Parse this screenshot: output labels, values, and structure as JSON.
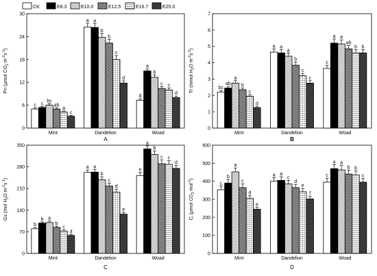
{
  "legend": [
    "CK",
    "E8.3",
    "E10.0",
    "E12.5",
    "E16.7",
    "E25.0"
  ],
  "series_styles": [
    {
      "name": "CK",
      "fill": "#ffffff",
      "pattern": "none"
    },
    {
      "name": "E8.3",
      "fill": "#000000",
      "pattern": "none"
    },
    {
      "name": "E10.0",
      "fill": "#c8c8c8",
      "pattern": "diag-light"
    },
    {
      "name": "E12.5",
      "fill": "#7a7a7a",
      "pattern": "diag-dark"
    },
    {
      "name": "E16.7",
      "fill": "#ffffff",
      "pattern": "grid"
    },
    {
      "name": "E25.0",
      "fill": "#3c3c3c",
      "pattern": "diag-black"
    }
  ],
  "chart_data": [
    {
      "type": "bar",
      "panel": "A",
      "ylabel_parts": [
        "Pn (",
        "μ",
        "mol CO",
        "2",
        " m",
        "-2",
        "s",
        "-1",
        ")"
      ],
      "ylim": [
        0,
        30
      ],
      "yticks": [
        0,
        6,
        12,
        18,
        24,
        30
      ],
      "categories": [
        "Mint",
        "Dandelion",
        "Woad"
      ],
      "series": [
        {
          "name": "CK",
          "values": [
            5.0,
            26.5,
            7.3
          ],
          "errors": [
            0.3,
            1.0,
            0.4
          ],
          "labels": [
            "c",
            "a",
            "d"
          ]
        },
        {
          "name": "E8.3",
          "values": [
            5.4,
            26.4,
            15.0
          ],
          "errors": [
            0.3,
            1.0,
            0.5
          ],
          "labels": [
            "c",
            "a",
            "a"
          ]
        },
        {
          "name": "E10.0",
          "values": [
            6.0,
            23.8,
            13.3
          ],
          "errors": [
            0.4,
            1.0,
            0.6
          ],
          "labels": [
            "bc",
            "b",
            "b"
          ]
        },
        {
          "name": "E12.5",
          "values": [
            5.0,
            22.3,
            10.4
          ],
          "errors": [
            0.3,
            1.0,
            0.5
          ],
          "labels": [
            "ab",
            "b",
            "c"
          ]
        },
        {
          "name": "E16.7",
          "values": [
            4.2,
            18.0,
            10.0
          ],
          "errors": [
            0.3,
            1.0,
            0.5
          ],
          "labels": [
            "a",
            "c",
            "c"
          ]
        },
        {
          "name": "E25.0",
          "values": [
            3.1,
            11.8,
            8.0
          ],
          "errors": [
            0.2,
            0.6,
            0.4
          ],
          "labels": [
            "c",
            "d",
            "d"
          ]
        }
      ]
    },
    {
      "type": "bar",
      "panel": "B",
      "ylabel_parts": [
        "Tr  (mmol H",
        "2",
        "O m",
        "-2",
        "s",
        "-1",
        ")"
      ],
      "ylim": [
        0,
        7
      ],
      "yticks": [
        0,
        1,
        2,
        3,
        4,
        5,
        6,
        7
      ],
      "categories": [
        "Mint",
        "Dandelion",
        "Woad"
      ],
      "series": [
        {
          "name": "CK",
          "values": [
            2.2,
            4.65,
            3.65
          ],
          "errors": [
            0.1,
            0.2,
            0.2
          ],
          "labels": [
            "bc",
            "a",
            "c"
          ]
        },
        {
          "name": "E8.3",
          "values": [
            2.45,
            4.6,
            5.2
          ],
          "errors": [
            0.1,
            0.2,
            0.25
          ],
          "labels": [
            "ab",
            "a",
            "a"
          ]
        },
        {
          "name": "E10.0",
          "values": [
            2.75,
            4.4,
            5.15
          ],
          "errors": [
            0.15,
            0.2,
            0.25
          ],
          "labels": [
            "a",
            "a",
            "a"
          ]
        },
        {
          "name": "E12.5",
          "values": [
            2.35,
            3.85,
            4.85
          ],
          "errors": [
            0.1,
            0.2,
            0.2
          ],
          "labels": [
            "b",
            "b",
            "ab"
          ]
        },
        {
          "name": "E16.7",
          "values": [
            1.95,
            3.2,
            4.6
          ],
          "errors": [
            0.1,
            0.15,
            0.2
          ],
          "labels": [
            "c",
            "c",
            "b"
          ]
        },
        {
          "name": "E25.0",
          "values": [
            1.25,
            2.75,
            4.6
          ],
          "errors": [
            0.08,
            0.15,
            0.2
          ],
          "labels": [
            "d",
            "c",
            "b"
          ]
        }
      ]
    },
    {
      "type": "bar",
      "panel": "C",
      "ylabel_parts": [
        "Gs (mol H",
        "2",
        "O m",
        "-2",
        "s",
        "-1",
        ")"
      ],
      "ylim": [
        0,
        350
      ],
      "yticks": [
        0,
        70,
        140,
        210,
        280,
        350
      ],
      "categories": [
        "Mint",
        "Dandelion",
        "Woad"
      ],
      "series": [
        {
          "name": "CK",
          "values": [
            80,
            262,
            252
          ],
          "errors": [
            4,
            8,
            10
          ],
          "labels": [
            "b",
            "a",
            "e"
          ]
        },
        {
          "name": "E8.3",
          "values": [
            98,
            263,
            338
          ],
          "errors": [
            4,
            8,
            10
          ],
          "labels": [
            "b",
            "a",
            "a"
          ]
        },
        {
          "name": "E10.0",
          "values": [
            100,
            238,
            320
          ],
          "errors": [
            5,
            10,
            12
          ],
          "labels": [
            "a",
            "b",
            "b"
          ]
        },
        {
          "name": "E12.5",
          "values": [
            84,
            218,
            290
          ],
          "errors": [
            4,
            9,
            12
          ],
          "labels": [
            "b",
            "c",
            "c"
          ]
        },
        {
          "name": "E16.7",
          "values": [
            72,
            198,
            288
          ],
          "errors": [
            4,
            10,
            12
          ],
          "labels": [
            "c",
            "d",
            "c"
          ]
        },
        {
          "name": "E25.0",
          "values": [
            58,
            127,
            275
          ],
          "errors": [
            3,
            6,
            10
          ],
          "labels": [
            "d",
            "e",
            "d"
          ]
        }
      ]
    },
    {
      "type": "bar",
      "panel": "D",
      "ylabel_parts": [
        "C",
        "i",
        " (",
        "μ",
        "mol CO",
        "2",
        " mol",
        "-1",
        ")"
      ],
      "ylim": [
        0,
        600
      ],
      "yticks": [
        0,
        100,
        200,
        300,
        400,
        500,
        600
      ],
      "categories": [
        "Mint",
        "Dandelion",
        "Woad"
      ],
      "series": [
        {
          "name": "CK",
          "values": [
            353,
            400,
            395
          ],
          "errors": [
            20,
            20,
            22
          ],
          "labels": [
            "c",
            "a",
            "c"
          ]
        },
        {
          "name": "E8.3",
          "values": [
            390,
            405,
            470
          ],
          "errors": [
            20,
            20,
            22
          ],
          "labels": [
            "b",
            "a",
            "a"
          ]
        },
        {
          "name": "E10.0",
          "values": [
            452,
            385,
            463
          ],
          "errors": [
            22,
            20,
            25
          ],
          "labels": [
            "a",
            "c",
            "a"
          ]
        },
        {
          "name": "E12.5",
          "values": [
            365,
            365,
            440
          ],
          "errors": [
            20,
            18,
            22
          ],
          "labels": [
            "c",
            "d",
            "b"
          ]
        },
        {
          "name": "E16.7",
          "values": [
            305,
            342,
            435
          ],
          "errors": [
            15,
            18,
            22
          ],
          "labels": [
            "d",
            "e",
            "b"
          ]
        },
        {
          "name": "E25.0",
          "values": [
            245,
            302,
            395
          ],
          "errors": [
            12,
            15,
            20
          ],
          "labels": [
            "e",
            "f",
            "c"
          ]
        }
      ]
    }
  ]
}
